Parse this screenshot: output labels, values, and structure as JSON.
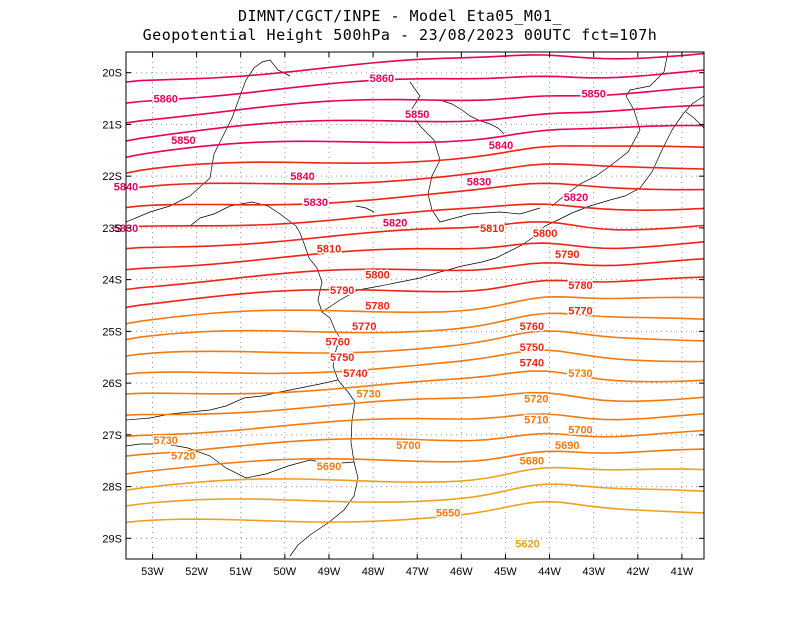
{
  "title": {
    "line1": "DIMNT/CGCT/INPE -  Model Eta05_M01_",
    "line2": "Geopotential Height 500hPa -  23/08/2023 00UTC fct=107h"
  },
  "map": {
    "lon_range": [
      -53.6,
      -40.5
    ],
    "lat_range": [
      -29.4,
      -19.6
    ],
    "y_ticks": [
      "20S",
      "21S",
      "22S",
      "23S",
      "24S",
      "25S",
      "26S",
      "27S",
      "28S",
      "29S"
    ],
    "x_ticks": [
      "53W",
      "52W",
      "51W",
      "50W",
      "49W",
      "48W",
      "47W",
      "46W",
      "45W",
      "44W",
      "43W",
      "42W",
      "41W"
    ]
  },
  "contour_labels": [
    {
      "text": "5860",
      "lon": -47.8,
      "lat": -20.1
    },
    {
      "text": "5860",
      "lon": -52.7,
      "lat": -20.5
    },
    {
      "text": "5850",
      "lon": -43.0,
      "lat": -20.4
    },
    {
      "text": "5850",
      "lon": -47.0,
      "lat": -20.8
    },
    {
      "text": "5850",
      "lon": -52.3,
      "lat": -21.3
    },
    {
      "text": "5840",
      "lon": -45.1,
      "lat": -21.4
    },
    {
      "text": "5840",
      "lon": -49.6,
      "lat": -22.0
    },
    {
      "text": "5840",
      "lon": -53.6,
      "lat": -22.2
    },
    {
      "text": "5830",
      "lon": -45.6,
      "lat": -22.1
    },
    {
      "text": "5830",
      "lon": -49.3,
      "lat": -22.5
    },
    {
      "text": "5830",
      "lon": -53.6,
      "lat": -23.0
    },
    {
      "text": "5820",
      "lon": -43.4,
      "lat": -22.4
    },
    {
      "text": "5820",
      "lon": -47.5,
      "lat": -22.9
    },
    {
      "text": "5810",
      "lon": -45.3,
      "lat": -23.0
    },
    {
      "text": "5810",
      "lon": -49.0,
      "lat": -23.4
    },
    {
      "text": "5800",
      "lon": -44.1,
      "lat": -23.1
    },
    {
      "text": "5800",
      "lon": -47.9,
      "lat": -23.9
    },
    {
      "text": "5790",
      "lon": -43.6,
      "lat": -23.5
    },
    {
      "text": "5790",
      "lon": -48.7,
      "lat": -24.2
    },
    {
      "text": "5780",
      "lon": -43.3,
      "lat": -24.1
    },
    {
      "text": "5780",
      "lon": -47.9,
      "lat": -24.5
    },
    {
      "text": "5770",
      "lon": -43.3,
      "lat": -24.6
    },
    {
      "text": "5770",
      "lon": -48.2,
      "lat": -24.9
    },
    {
      "text": "5760",
      "lon": -44.4,
      "lat": -24.9
    },
    {
      "text": "5760",
      "lon": -48.8,
      "lat": -25.2
    },
    {
      "text": "5750",
      "lon": -44.4,
      "lat": -25.3
    },
    {
      "text": "5750",
      "lon": -48.7,
      "lat": -25.5
    },
    {
      "text": "5740",
      "lon": -44.4,
      "lat": -25.6
    },
    {
      "text": "5740",
      "lon": -48.4,
      "lat": -25.8
    },
    {
      "text": "5730",
      "lon": -43.3,
      "lat": -25.8
    },
    {
      "text": "5730",
      "lon": -48.1,
      "lat": -26.2
    },
    {
      "text": "5730",
      "lon": -52.7,
      "lat": -27.1
    },
    {
      "text": "5720",
      "lon": -44.3,
      "lat": -26.3
    },
    {
      "text": "5720",
      "lon": -52.3,
      "lat": -27.4
    },
    {
      "text": "5710",
      "lon": -44.3,
      "lat": -26.7
    },
    {
      "text": "5700",
      "lon": -43.3,
      "lat": -26.9
    },
    {
      "text": "5700",
      "lon": -47.2,
      "lat": -27.2
    },
    {
      "text": "5690",
      "lon": -43.6,
      "lat": -27.2
    },
    {
      "text": "5690",
      "lon": -49.0,
      "lat": -27.6
    },
    {
      "text": "5680",
      "lon": -44.4,
      "lat": -27.5
    },
    {
      "text": "5650",
      "lon": -46.3,
      "lat": -28.5
    },
    {
      "text": "5620",
      "lon": -44.5,
      "lat": -29.1
    }
  ],
  "colors": {
    "high": "#e8005a",
    "mid": "#f02414",
    "low": "#f37a10",
    "lowest": "#f0a020"
  }
}
